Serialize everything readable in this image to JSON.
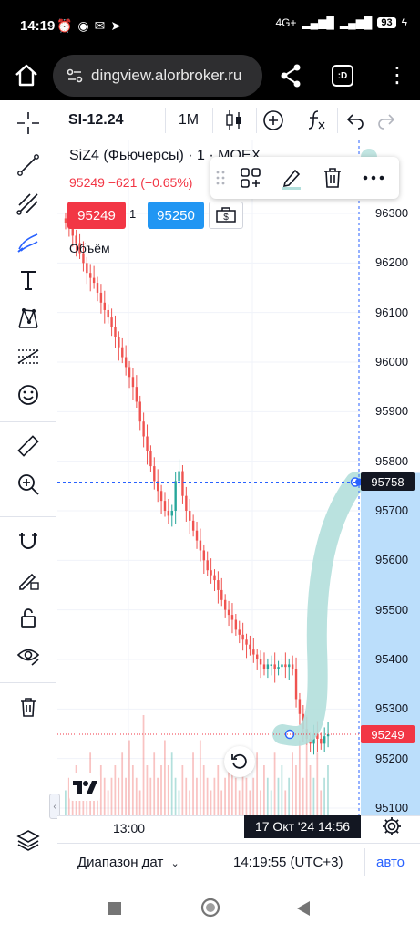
{
  "status_bar": {
    "time": "14:19",
    "network": "4G+",
    "battery": "93"
  },
  "browser": {
    "url": "dingview.alorbroker.ru",
    "tabs_label": ":D"
  },
  "chart_toolbar": {
    "symbol": "SI-12.24",
    "interval": "1M"
  },
  "legend": {
    "title": "SiZ4 (Фьючерсы) · 1 · MOEX",
    "price": "95249",
    "change": "−621 (−0.65%)",
    "volume_label": "Объём"
  },
  "trade": {
    "sell_price": "95249",
    "quantity": "1",
    "buy_price": "95250"
  },
  "price_axis": {
    "labels": [
      "96300",
      "96200",
      "96100",
      "96000",
      "95900",
      "95800",
      "95700",
      "95600",
      "95500",
      "95400",
      "95300",
      "95200",
      "95100"
    ],
    "crosshair_price": "95758",
    "last_price": "95249"
  },
  "time_axis": {
    "label_1300": "13:00",
    "crosshair_time": "17 Окт '24   14:56"
  },
  "bottom_bar": {
    "range_label": "Диапазон дат",
    "clock": "14:19:55 (UTC+3)",
    "auto": "авто"
  },
  "colors": {
    "up": "#26a69a",
    "down": "#ef5350",
    "sell": "#f23645",
    "buy": "#2196f3",
    "accent": "#2962ff",
    "highlight": "#bbdefb",
    "brush": "#b2dfdb"
  },
  "chart_data": {
    "type": "candlestick",
    "ylim": [
      95080,
      96340
    ],
    "price_ticks": [
      96300,
      96200,
      96100,
      96000,
      95900,
      95800,
      95700,
      95600,
      95500,
      95400,
      95300,
      95200,
      95100
    ],
    "last_price": 95249,
    "crosshair_price": 95758,
    "path_close": [
      96280,
      96270,
      96255,
      96240,
      96220,
      96200,
      96180,
      96170,
      96160,
      96140,
      96120,
      96105,
      96090,
      96070,
      96050,
      96030,
      96010,
      95990,
      95970,
      95950,
      95920,
      95880,
      95850,
      95820,
      95790,
      95760,
      95740,
      95720,
      95700,
      95690,
      95700,
      95760,
      95780,
      95730,
      95700,
      95680,
      95660,
      95640,
      95620,
      95600,
      95580,
      95570,
      95560,
      95540,
      95520,
      95500,
      95490,
      95480,
      95460,
      95450,
      95440,
      95430,
      95420,
      95410,
      95400,
      95390,
      95380,
      95390,
      95390,
      95380,
      95385,
      95390,
      95385,
      95390,
      95380,
      95320,
      95290,
      95260,
      95240,
      95230,
      95250,
      95240,
      95230,
      95245,
      95249
    ],
    "volume": [
      2,
      3,
      2,
      4,
      3,
      2,
      3,
      5,
      3,
      2,
      4,
      3,
      2,
      3,
      4,
      3,
      5,
      3,
      6,
      4,
      3,
      2,
      8,
      4,
      3,
      5,
      3,
      4,
      6,
      4,
      5,
      3,
      2,
      4,
      3,
      2,
      5,
      3,
      6,
      4,
      3,
      2,
      3,
      4,
      2,
      3,
      4,
      5,
      3,
      2,
      4,
      3,
      2,
      3,
      5,
      2,
      4,
      3,
      2,
      5,
      3,
      4,
      2,
      3,
      5,
      4,
      6,
      3,
      8,
      4,
      3,
      5,
      2,
      3,
      4
    ]
  }
}
